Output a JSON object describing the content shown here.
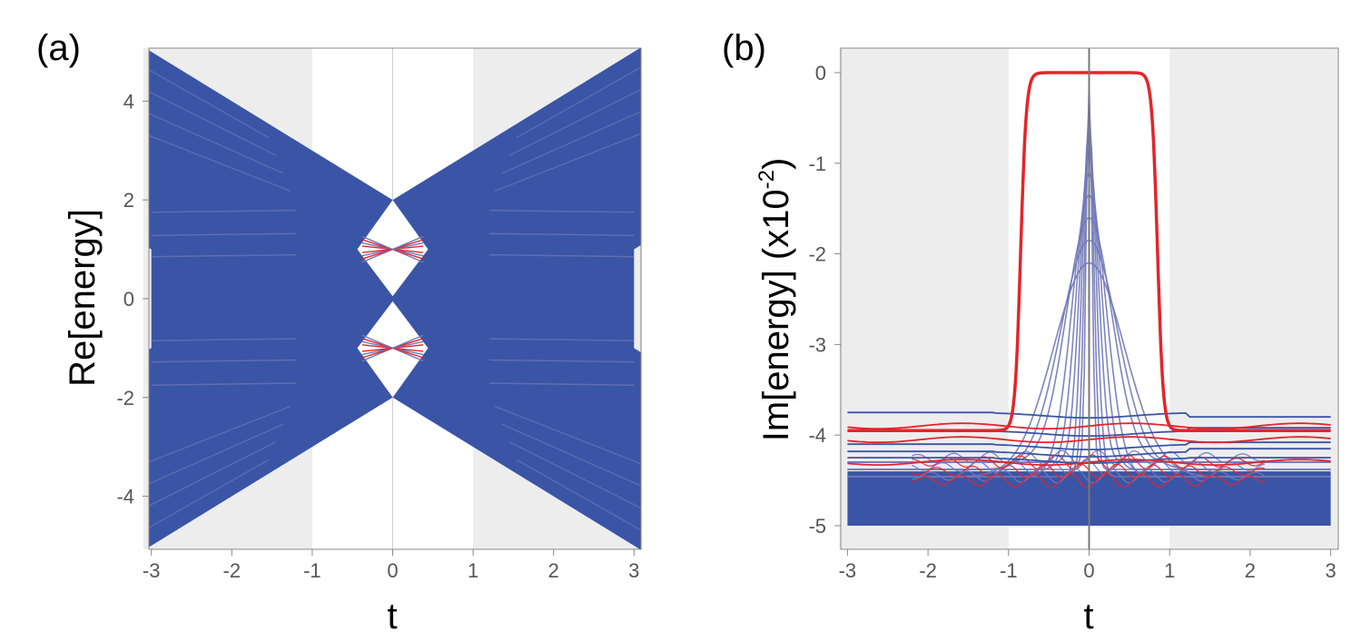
{
  "colors": {
    "band": "#3a55a6",
    "band_light": "#7078b8",
    "red": "#e3252b",
    "shade": "#ededed",
    "axis": "#888888"
  },
  "chart_data": [
    {
      "type": "line",
      "panel_label": "(a)",
      "xlabel": "t",
      "ylabel": "Re[energy]",
      "xlim": [
        -3.1,
        3.1
      ],
      "ylim": [
        -5,
        5
      ],
      "xticks": [
        "-3",
        "-2",
        "-1",
        "0",
        "1",
        "2",
        "3"
      ],
      "xtick_values": [
        -3,
        -2,
        -1,
        0,
        1,
        2,
        3
      ],
      "yticks": [
        "4",
        "2",
        "0",
        "-2",
        "-4"
      ],
      "ytick_values": [
        4,
        2,
        0,
        -2,
        -4
      ],
      "shaded_regions": [
        [
          -3.1,
          -1
        ],
        [
          1,
          3.1
        ]
      ],
      "series": [
        {
          "name": "bulk continuum (blue)",
          "description": "fills |E| between |t|-2 and |t|+2 and |E|<=2 for |t|>=0"
        },
        {
          "name": "edge states (red)",
          "values_at_t0": [
            1,
            -1
          ]
        }
      ]
    },
    {
      "type": "line",
      "panel_label": "(b)",
      "xlabel": "t",
      "ylabel_main": "Im[energy] (x10",
      "ylabel_exp": "-2",
      "ylabel_close": ")",
      "xlim": [
        -3.1,
        3.1
      ],
      "ylim": [
        -5.25,
        0.25
      ],
      "xticks": [
        "-3",
        "-2",
        "-1",
        "0",
        "1",
        "2",
        "3"
      ],
      "xtick_values": [
        -3,
        -2,
        -1,
        0,
        1,
        2,
        3
      ],
      "yticks": [
        "0",
        "-1",
        "-2",
        "-3",
        "-4",
        "-5"
      ],
      "ytick_values": [
        0,
        -1,
        -2,
        -3,
        -4,
        -5
      ],
      "shaded_regions": [
        [
          -3.1,
          -1
        ],
        [
          1,
          3.1
        ]
      ],
      "series": [
        {
          "name": "topological state (red, thick)",
          "plateau": 0,
          "outside": -3.95
        },
        {
          "name": "bulk states (blue)",
          "range": [
            -5,
            -3.75
          ]
        },
        {
          "name": "red states",
          "levels": [
            -3.9,
            -4.05,
            -4.3
          ]
        }
      ]
    }
  ]
}
